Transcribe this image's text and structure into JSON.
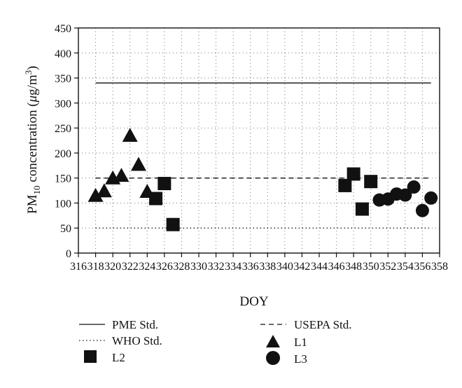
{
  "chart_data": {
    "type": "scatter",
    "xlabel": "DOY",
    "ylabel_main": "PM",
    "ylabel_sub": "10",
    "ylabel_rest": " concentration (",
    "ylabel_unit_mu": "μ",
    "ylabel_unit_g": "g/m",
    "ylabel_unit_sup": "3",
    "ylabel_close": ")",
    "xlim": [
      316,
      358
    ],
    "ylim": [
      0,
      450
    ],
    "x_ticks": [
      "316",
      "318",
      "320",
      "322",
      "324",
      "326",
      "328",
      "330",
      "332",
      "334",
      "336",
      "338",
      "340",
      "342",
      "344",
      "346",
      "348",
      "350",
      "352",
      "354",
      "356",
      "358"
    ],
    "y_ticks": [
      "0",
      "50",
      "100",
      "150",
      "200",
      "250",
      "300",
      "350",
      "400",
      "450"
    ],
    "grid": true,
    "reference_lines": [
      {
        "name": "PME Std.",
        "value": 340,
        "x_range": [
          318,
          357
        ],
        "style": "solid"
      },
      {
        "name": "USEPA Std.",
        "value": 150,
        "x_range": [
          318,
          357
        ],
        "style": "dashed"
      },
      {
        "name": "WHO Std.",
        "value": 50,
        "x_range": [
          318,
          357
        ],
        "style": "dotted"
      }
    ],
    "series": [
      {
        "name": "L1",
        "marker": "triangle",
        "x": [
          318,
          319,
          320,
          321,
          322,
          323,
          324
        ],
        "y": [
          113,
          122,
          148,
          153,
          233,
          175,
          121
        ]
      },
      {
        "name": "L2",
        "marker": "square",
        "x": [
          325,
          326,
          327,
          347,
          348,
          349,
          350
        ],
        "y": [
          109,
          139,
          57,
          135,
          158,
          88,
          143
        ]
      },
      {
        "name": "L3",
        "marker": "circle",
        "x": [
          351,
          352,
          353,
          354,
          355,
          356,
          357
        ],
        "y": [
          106,
          108,
          118,
          116,
          132,
          85,
          110
        ]
      }
    ],
    "legend_placement": "bottom"
  }
}
